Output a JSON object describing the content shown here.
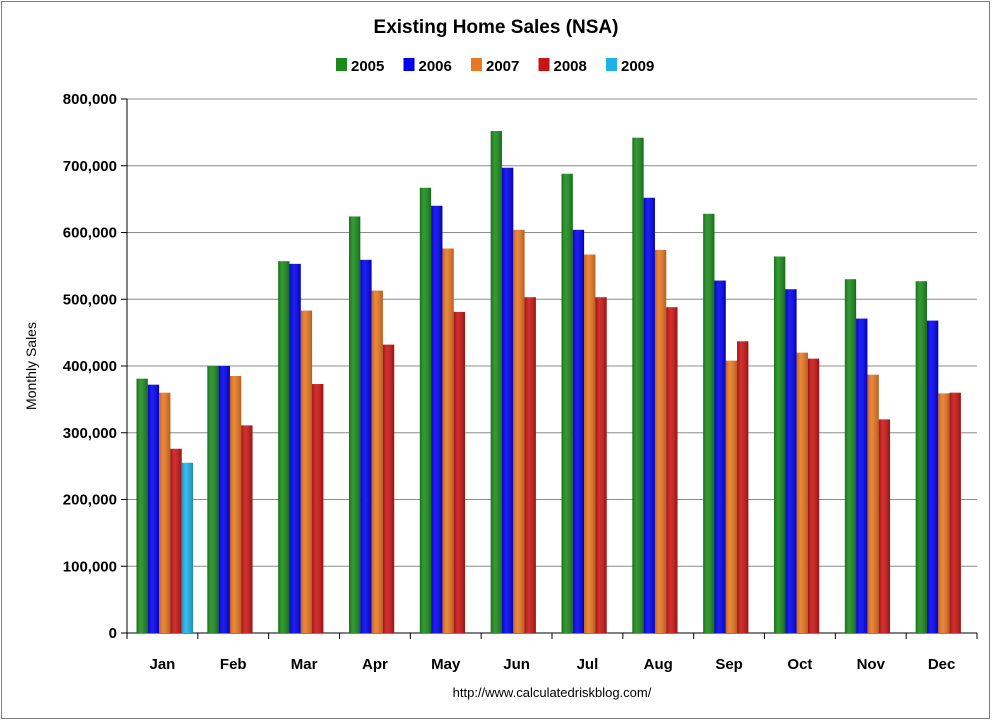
{
  "chart_data": {
    "type": "bar",
    "title": "Existing Home Sales (NSA)",
    "ylabel": "Monthly Sales",
    "xlabel": "",
    "ylim": [
      0,
      800000
    ],
    "yticks": [
      0,
      100000,
      200000,
      300000,
      400000,
      500000,
      600000,
      700000,
      800000
    ],
    "ytick_labels": [
      "0",
      "100,000",
      "200,000",
      "300,000",
      "400,000",
      "500,000",
      "600,000",
      "700,000",
      "800,000"
    ],
    "grid": true,
    "legend": "top",
    "categories": [
      "Jan",
      "Feb",
      "Mar",
      "Apr",
      "May",
      "Jun",
      "Jul",
      "Aug",
      "Sep",
      "Oct",
      "Nov",
      "Dec"
    ],
    "series": [
      {
        "name": "2005",
        "color": "#1a8a1a",
        "values": [
          381000,
          400000,
          557000,
          624000,
          667000,
          752000,
          688000,
          742000,
          628000,
          564000,
          530000,
          527000
        ]
      },
      {
        "name": "2006",
        "color": "#0000ee",
        "values": [
          372000,
          400000,
          553000,
          559000,
          640000,
          697000,
          604000,
          652000,
          528000,
          515000,
          471000,
          468000
        ]
      },
      {
        "name": "2007",
        "color": "#e87722",
        "values": [
          360000,
          385000,
          483000,
          513000,
          576000,
          604000,
          567000,
          574000,
          408000,
          420000,
          387000,
          359000
        ]
      },
      {
        "name": "2008",
        "color": "#c81414",
        "values": [
          276000,
          311000,
          373000,
          432000,
          481000,
          503000,
          503000,
          488000,
          437000,
          411000,
          320000,
          360000
        ]
      },
      {
        "name": "2009",
        "color": "#1fb2e8",
        "values": [
          255000,
          null,
          null,
          null,
          null,
          null,
          null,
          null,
          null,
          null,
          null,
          null
        ]
      }
    ],
    "source": "http://www.calculatedriskblog.com/"
  }
}
